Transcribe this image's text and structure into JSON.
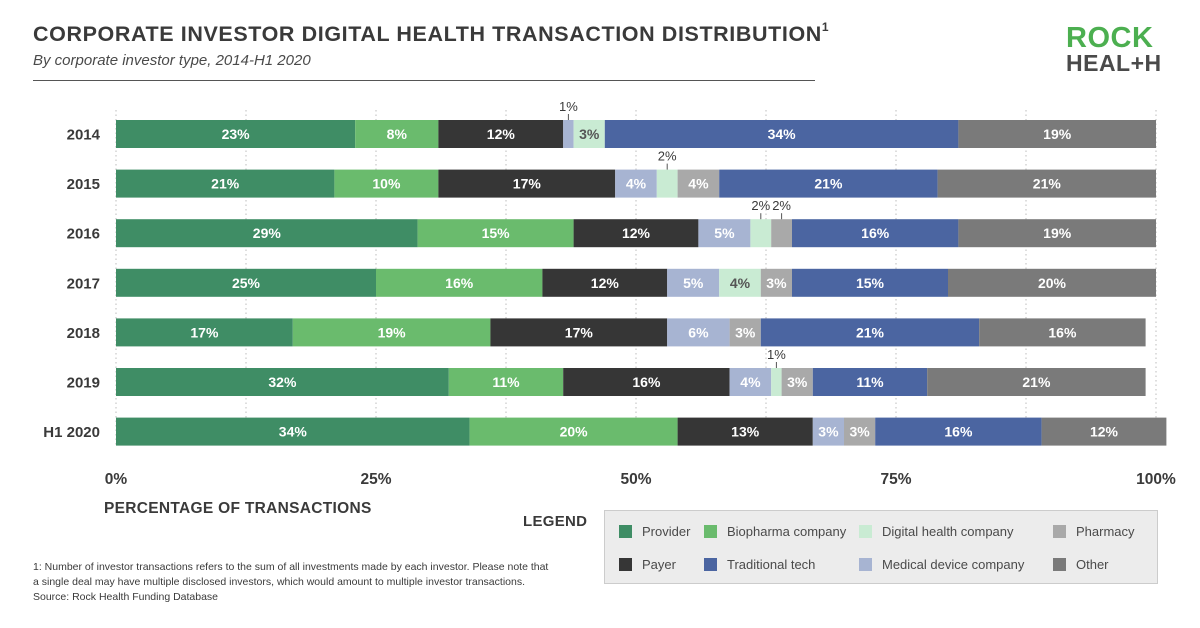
{
  "header": {
    "title": "CORPORATE INVESTOR DIGITAL HEALTH TRANSACTION DISTRIBUTION",
    "title_sup": "1",
    "subtitle": "By corporate investor type, 2014-H1 2020"
  },
  "logo": {
    "line1": "ROCK",
    "line2": "HEAL+H"
  },
  "footnote": {
    "line1": "1: Number of investor transactions refers to the sum of all investments made by each investor. Please note that",
    "line2": "a single deal may have multiple disclosed investors, which would amount to multiple investor transactions.",
    "line3": "Source: Rock Health Funding Database"
  },
  "legend": {
    "title": "LEGEND",
    "items": [
      {
        "label": "Provider",
        "color": "#3f8d65"
      },
      {
        "label": "Biopharma company",
        "color": "#6abb6d"
      },
      {
        "label": "Digital health company",
        "color": "#c9ebd3"
      },
      {
        "label": "Pharmacy",
        "color": "#a9a9a9"
      },
      {
        "label": "Payer",
        "color": "#363636"
      },
      {
        "label": "Traditional tech",
        "color": "#4b65a1"
      },
      {
        "label": "Medical device company",
        "color": "#a7b4d2"
      },
      {
        "label": "Other",
        "color": "#7a7a7a"
      }
    ]
  },
  "chart_data": {
    "type": "bar",
    "orientation": "horizontal",
    "stacked": true,
    "title": "CORPORATE INVESTOR DIGITAL HEALTH TRANSACTION DISTRIBUTION",
    "subtitle": "By corporate investor type, 2014-H1 2020",
    "xlabel": "PERCENTAGE OF TRANSACTIONS",
    "ylabel": "",
    "xlim": [
      0,
      100
    ],
    "xticks": [
      "0%",
      "25%",
      "50%",
      "75%",
      "100%"
    ],
    "grid": "vertical dotted at 12.5% intervals",
    "legend_position": "bottom-right",
    "categories": [
      "2014",
      "2015",
      "2016",
      "2017",
      "2018",
      "2019",
      "H1 2020"
    ],
    "series": [
      {
        "name": "Provider",
        "color": "#3f8d65",
        "values": [
          23,
          21,
          29,
          25,
          17,
          32,
          34
        ]
      },
      {
        "name": "Biopharma company",
        "color": "#6abb6d",
        "values": [
          8,
          10,
          15,
          16,
          19,
          11,
          20
        ]
      },
      {
        "name": "Payer",
        "color": "#363636",
        "values": [
          12,
          17,
          12,
          12,
          17,
          16,
          13
        ]
      },
      {
        "name": "Medical device company",
        "color": "#a7b4d2",
        "values": [
          1,
          4,
          5,
          5,
          6,
          4,
          3
        ]
      },
      {
        "name": "Digital health company",
        "color": "#c9ebd3",
        "values": [
          3,
          2,
          2,
          4,
          0,
          1,
          0
        ]
      },
      {
        "name": "Pharmacy",
        "color": "#a9a9a9",
        "values": [
          0,
          4,
          2,
          3,
          3,
          3,
          3
        ]
      },
      {
        "name": "Traditional tech",
        "color": "#4b65a1",
        "values": [
          34,
          21,
          16,
          15,
          21,
          11,
          16
        ]
      },
      {
        "name": "Other",
        "color": "#7a7a7a",
        "values": [
          19,
          21,
          19,
          20,
          16,
          21,
          12
        ]
      }
    ],
    "segment_labels": [
      [
        "23%",
        "8%",
        "12%",
        "1%",
        "3%",
        "",
        "34%",
        "19%"
      ],
      [
        "21%",
        "10%",
        "17%",
        "4%",
        "2%",
        "4%",
        "21%",
        "21%"
      ],
      [
        "29%",
        "15%",
        "12%",
        "5%",
        "2%",
        "2%",
        "16%",
        "19%"
      ],
      [
        "25%",
        "16%",
        "12%",
        "5%",
        "4%",
        "3%",
        "15%",
        "20%"
      ],
      [
        "17%",
        "19%",
        "17%",
        "6%",
        "",
        "3%",
        "21%",
        "16%"
      ],
      [
        "32%",
        "11%",
        "16%",
        "4%",
        "1%",
        "3%",
        "11%",
        "21%"
      ],
      [
        "34%",
        "20%",
        "13%",
        "3%",
        "",
        "3%",
        "16%",
        "12%"
      ]
    ],
    "callout_labels": [
      {
        "category": "2014",
        "series": "Medical device company",
        "text": "1%"
      },
      {
        "category": "2015",
        "series": "Digital health company",
        "text": "2%"
      },
      {
        "category": "2016",
        "series": "Digital health company",
        "text": "2%"
      },
      {
        "category": "2016",
        "series": "Pharmacy",
        "text": "2%"
      },
      {
        "category": "2019",
        "series": "Digital health company",
        "text": "1%"
      }
    ]
  }
}
